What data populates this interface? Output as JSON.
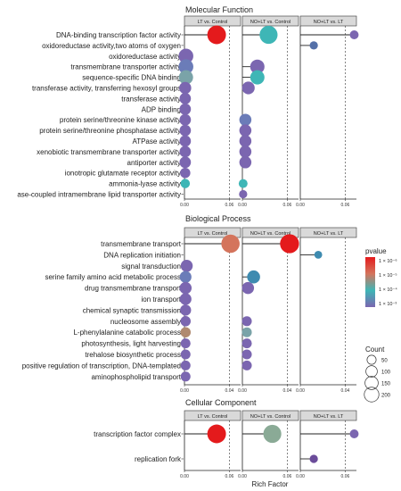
{
  "chart_data": {
    "type": "scatter",
    "subtype": "lollipop enrichment dot plot (faceted)",
    "xlabel": "Rich Factor",
    "color_scale_name": "pvalue",
    "size_scale_name": "Count",
    "comparisons": [
      "LT vs. Control",
      "NO+LT vs. Control",
      "NO+LT vs. LT"
    ],
    "pvalue_legend": {
      "labels": [
        "1 × 10⁻⁶",
        "1 × 10⁻⁵",
        "1 × 10⁻⁴",
        "1 × 10⁻³"
      ],
      "colors": [
        "#e41a1c",
        "#d4745c",
        "#3eb6b6",
        "#7b66b0"
      ]
    },
    "count_legend": {
      "values": [
        50,
        100,
        150,
        200
      ]
    },
    "panels": [
      {
        "title": "Molecular Function",
        "xticks": [
          [
            {
              "v": 0.0,
              "label": "0.00"
            },
            {
              "v": 0.06,
              "label": "0.06"
            }
          ],
          [
            {
              "v": 0.0,
              "label": "0.00"
            },
            {
              "v": 0.06,
              "label": "0.06"
            }
          ],
          [
            {
              "v": 0.0,
              "label": "0.00"
            },
            {
              "v": 0.06,
              "label": "0.06"
            }
          ]
        ],
        "xlims": [
          [
            0,
            0.075
          ],
          [
            0,
            0.075
          ],
          [
            0,
            0.075
          ]
        ],
        "terms": [
          "DNA-binding transcription factor activity",
          "oxidoreductase activity,two atoms of oxygen",
          "oxidoreductase activity",
          "transmembrane transporter activity",
          "sequence-specific DNA binding",
          "transferase activity, transferring hexosyl groups",
          "transferase activity",
          "ADP binding",
          "protein serine/threonine kinase activity",
          "protein serine/threonine phosphatase activity",
          "ATPase activity",
          "xenobiotic transmembrane transporter activity",
          "antiporter activity",
          "ionotropic glutamate receptor activity",
          "ammonia-lyase activity",
          "ase-coupled intramembrane lipid transporter activity"
        ],
        "points": [
          [
            {
              "row": 0,
              "x": 0.043,
              "count": 210,
              "color": "#e41a1c"
            },
            {
              "row": 2,
              "x": 0.002,
              "count": 110,
              "color": "#7b66b0"
            },
            {
              "row": 3,
              "x": 0.002,
              "count": 110,
              "color": "#6b7cb8"
            },
            {
              "row": 4,
              "x": 0.002,
              "count": 100,
              "color": "#7aa3a8"
            },
            {
              "row": 5,
              "x": 0.001,
              "count": 60,
              "color": "#7b66b0"
            },
            {
              "row": 6,
              "x": 0.001,
              "count": 50,
              "color": "#7b66b0"
            },
            {
              "row": 7,
              "x": 0.001,
              "count": 50,
              "color": "#7b66b0"
            },
            {
              "row": 8,
              "x": 0.001,
              "count": 50,
              "color": "#7b66b0"
            },
            {
              "row": 9,
              "x": 0.001,
              "count": 50,
              "color": "#7b66b0"
            },
            {
              "row": 10,
              "x": 0.001,
              "count": 50,
              "color": "#7b66b0"
            },
            {
              "row": 11,
              "x": 0.001,
              "count": 50,
              "color": "#7b66b0"
            },
            {
              "row": 12,
              "x": 0.001,
              "count": 50,
              "color": "#7b66b0"
            },
            {
              "row": 13,
              "x": 0.001,
              "count": 35,
              "color": "#7b66b0"
            },
            {
              "row": 14,
              "x": 0.001,
              "count": 25,
              "color": "#3eb6b6"
            }
          ],
          [
            {
              "row": 0,
              "x": 0.035,
              "count": 190,
              "color": "#3eb6b6"
            },
            {
              "row": 3,
              "x": 0.02,
              "count": 100,
              "color": "#7b66b0"
            },
            {
              "row": 4,
              "x": 0.02,
              "count": 100,
              "color": "#3eb6b6"
            },
            {
              "row": 5,
              "x": 0.008,
              "count": 70,
              "color": "#7b66b0"
            },
            {
              "row": 8,
              "x": 0.004,
              "count": 60,
              "color": "#6b7cb8"
            },
            {
              "row": 9,
              "x": 0.004,
              "count": 60,
              "color": "#7b66b0"
            },
            {
              "row": 10,
              "x": 0.004,
              "count": 60,
              "color": "#7b66b0"
            },
            {
              "row": 11,
              "x": 0.004,
              "count": 60,
              "color": "#7b66b0"
            },
            {
              "row": 12,
              "x": 0.004,
              "count": 60,
              "color": "#7b66b0"
            },
            {
              "row": 14,
              "x": 0.001,
              "count": 20,
              "color": "#3eb6b6"
            },
            {
              "row": 15,
              "x": 0.001,
              "count": 15,
              "color": "#7b66b0"
            }
          ],
          [
            {
              "row": 0,
              "x": 0.072,
              "count": 20,
              "color": "#7b66b0"
            },
            {
              "row": 1,
              "x": 0.018,
              "count": 15,
              "color": "#5470a8"
            }
          ]
        ]
      },
      {
        "title": "Biological Process",
        "xticks": [
          [
            {
              "v": 0.0,
              "label": "0.00"
            },
            {
              "v": 0.04,
              "label": "0.04"
            }
          ],
          [
            {
              "v": 0.0,
              "label": "0.00"
            },
            {
              "v": 0.04,
              "label": "0.04"
            }
          ],
          [
            {
              "v": 0.0,
              "label": "0.00"
            },
            {
              "v": 0.04,
              "label": "0.04"
            }
          ]
        ],
        "xlims": [
          [
            0,
            0.05
          ],
          [
            0,
            0.05
          ],
          [
            0,
            0.05
          ]
        ],
        "terms": [
          "transmembrane transport",
          "DNA replication initiation",
          "signal transduction",
          "serine family amino acid metabolic process",
          "drug transmembrane transport",
          "ion transport",
          "chemical synaptic transmission",
          "nucleosome assembly",
          "L-phenylalanine catabolic process",
          "photosynthesis, light harvesting",
          "trehalose biosynthetic process",
          "positive regulation of transcription, DNA-templated",
          "aminophospholipid transport"
        ],
        "points": [
          [
            {
              "row": 0,
              "x": 0.041,
              "count": 200,
              "color": "#d4745c"
            },
            {
              "row": 2,
              "x": 0.002,
              "count": 60,
              "color": "#7b66b0"
            },
            {
              "row": 3,
              "x": 0.001,
              "count": 55,
              "color": "#6b7cb8"
            },
            {
              "row": 4,
              "x": 0.001,
              "count": 60,
              "color": "#7b66b0"
            },
            {
              "row": 5,
              "x": 0.001,
              "count": 55,
              "color": "#7b66b0"
            },
            {
              "row": 6,
              "x": 0.001,
              "count": 45,
              "color": "#7b66b0"
            },
            {
              "row": 7,
              "x": 0.001,
              "count": 35,
              "color": "#7b66b0"
            },
            {
              "row": 8,
              "x": 0.001,
              "count": 35,
              "color": "#b08a70"
            },
            {
              "row": 9,
              "x": 0.001,
              "count": 30,
              "color": "#7b66b0"
            },
            {
              "row": 10,
              "x": 0.001,
              "count": 30,
              "color": "#7b66b0"
            },
            {
              "row": 11,
              "x": 0.001,
              "count": 30,
              "color": "#7b66b0"
            },
            {
              "row": 12,
              "x": 0.001,
              "count": 30,
              "color": "#7b66b0"
            }
          ],
          [
            {
              "row": 0,
              "x": 0.042,
              "count": 220,
              "color": "#e41a1c"
            },
            {
              "row": 3,
              "x": 0.01,
              "count": 75,
              "color": "#3e8bb0"
            },
            {
              "row": 4,
              "x": 0.005,
              "count": 60,
              "color": "#7b66b0"
            },
            {
              "row": 7,
              "x": 0.004,
              "count": 30,
              "color": "#7b66b0"
            },
            {
              "row": 8,
              "x": 0.004,
              "count": 30,
              "color": "#7aa3a8"
            },
            {
              "row": 9,
              "x": 0.004,
              "count": 30,
              "color": "#7b66b0"
            },
            {
              "row": 10,
              "x": 0.004,
              "count": 30,
              "color": "#7b66b0"
            },
            {
              "row": 11,
              "x": 0.004,
              "count": 30,
              "color": "#7b66b0"
            }
          ],
          [
            {
              "row": 1,
              "x": 0.016,
              "count": 12,
              "color": "#3e8bb0"
            }
          ]
        ]
      },
      {
        "title": "Cellular Component",
        "xticks": [
          [
            {
              "v": 0.0,
              "label": "0.00"
            },
            {
              "v": 0.06,
              "label": "0.06"
            }
          ],
          [
            {
              "v": 0.0,
              "label": "0.00"
            },
            {
              "v": 0.06,
              "label": "0.06"
            }
          ],
          [
            {
              "v": 0.0,
              "label": "0.00"
            },
            {
              "v": 0.06,
              "label": "0.06"
            }
          ]
        ],
        "xlims": [
          [
            0,
            0.075
          ],
          [
            0,
            0.075
          ],
          [
            0,
            0.075
          ]
        ],
        "terms": [
          "transcription factor complex",
          "replication fork"
        ],
        "points": [
          [
            {
              "row": 0,
              "x": 0.043,
              "count": 210,
              "color": "#e41a1c"
            }
          ],
          [
            {
              "row": 0,
              "x": 0.04,
              "count": 190,
              "color": "#8aaa96"
            }
          ],
          [
            {
              "row": 0,
              "x": 0.072,
              "count": 20,
              "color": "#7b66b0"
            },
            {
              "row": 1,
              "x": 0.018,
              "count": 15,
              "color": "#6b4c9a"
            }
          ]
        ]
      }
    ]
  }
}
